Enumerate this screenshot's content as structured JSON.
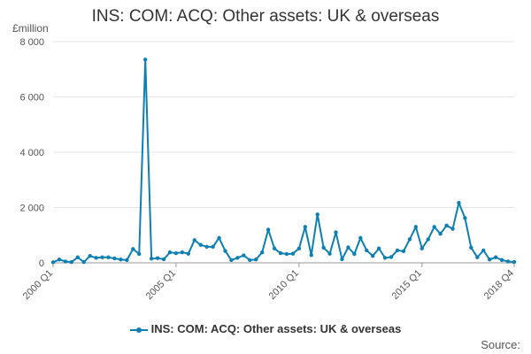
{
  "chart_data": {
    "type": "line",
    "title": "INS: COM: ACQ: Other assets: UK & overseas",
    "ylabel": "£million",
    "ylim": [
      0,
      8000
    ],
    "yticks": [
      0,
      2000,
      4000,
      6000,
      8000
    ],
    "ytick_labels": [
      "0",
      "2 000",
      "4 000",
      "6 000",
      "8 000"
    ],
    "xtick_labels": [
      "2000 Q1",
      "2005 Q1",
      "2010 Q1",
      "2015 Q1",
      "2018 Q4"
    ],
    "xtick_positions": [
      0,
      20,
      40,
      60,
      75
    ],
    "grid": true,
    "legend_position": "bottom",
    "color": "#0e7fb3",
    "categories": [
      "2000 Q1",
      "2000 Q2",
      "2000 Q3",
      "2000 Q4",
      "2001 Q1",
      "2001 Q2",
      "2001 Q3",
      "2001 Q4",
      "2002 Q1",
      "2002 Q2",
      "2002 Q3",
      "2002 Q4",
      "2003 Q1",
      "2003 Q2",
      "2003 Q3",
      "2003 Q4",
      "2004 Q1",
      "2004 Q2",
      "2004 Q3",
      "2004 Q4",
      "2005 Q1",
      "2005 Q2",
      "2005 Q3",
      "2005 Q4",
      "2006 Q1",
      "2006 Q2",
      "2006 Q3",
      "2006 Q4",
      "2007 Q1",
      "2007 Q2",
      "2007 Q3",
      "2007 Q4",
      "2008 Q1",
      "2008 Q2",
      "2008 Q3",
      "2008 Q4",
      "2009 Q1",
      "2009 Q2",
      "2009 Q3",
      "2009 Q4",
      "2010 Q1",
      "2010 Q2",
      "2010 Q3",
      "2010 Q4",
      "2011 Q1",
      "2011 Q2",
      "2011 Q3",
      "2011 Q4",
      "2012 Q1",
      "2012 Q2",
      "2012 Q3",
      "2012 Q4",
      "2013 Q1",
      "2013 Q2",
      "2013 Q3",
      "2013 Q4",
      "2014 Q1",
      "2014 Q2",
      "2014 Q3",
      "2014 Q4",
      "2015 Q1",
      "2015 Q2",
      "2015 Q3",
      "2015 Q4",
      "2016 Q1",
      "2016 Q2",
      "2016 Q3",
      "2016 Q4",
      "2017 Q1",
      "2017 Q2",
      "2017 Q3",
      "2017 Q4",
      "2018 Q1",
      "2018 Q2",
      "2018 Q3",
      "2018 Q4"
    ],
    "series": [
      {
        "name": "INS: COM: ACQ: Other assets: UK & overseas",
        "values": [
          20,
          120,
          50,
          30,
          200,
          30,
          250,
          180,
          200,
          200,
          160,
          120,
          100,
          500,
          320,
          7350,
          150,
          170,
          130,
          380,
          350,
          380,
          330,
          820,
          650,
          580,
          580,
          900,
          430,
          100,
          180,
          270,
          100,
          120,
          380,
          1200,
          520,
          350,
          320,
          330,
          520,
          1300,
          280,
          1750,
          550,
          330,
          1100,
          130,
          560,
          320,
          900,
          450,
          250,
          520,
          180,
          210,
          450,
          420,
          850,
          1300,
          520,
          850,
          1300,
          1050,
          1350,
          1230,
          2170,
          1620,
          550,
          200,
          450,
          120,
          200,
          100,
          50,
          30
        ]
      }
    ]
  },
  "legend": {
    "label": "INS: COM: ACQ: Other assets: UK & overseas"
  },
  "source": {
    "label": "Source:"
  }
}
